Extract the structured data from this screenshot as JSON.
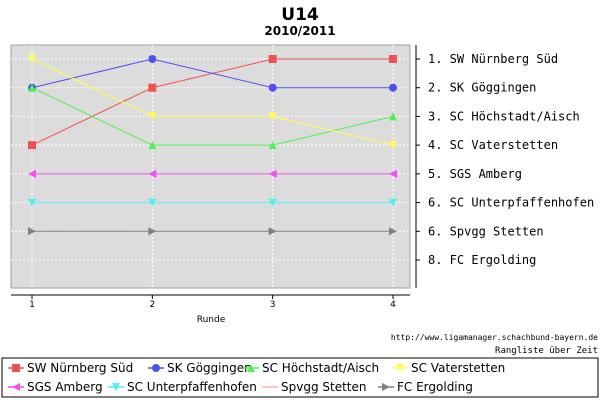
{
  "chart_data": {
    "type": "line",
    "title": "U14",
    "subtitle": "2010/2011",
    "xlabel": "Runde",
    "ylabel": "",
    "x": [
      1,
      2,
      3,
      4
    ],
    "x_tick_labels": [
      "1",
      "2",
      "3",
      "4"
    ],
    "ylim": [
      1,
      8
    ],
    "y_inverted": true,
    "grid": true,
    "legend_position": "bottom",
    "rank_labels": [
      "1. SW Nürnberg Süd",
      "2. SK Göggingen",
      "3. SC Höchstadt/Aisch",
      "4. SC Vaterstetten",
      "5. SGS Amberg",
      "6. SC Unterpfaffenhofen",
      "6. Spvgg Stetten",
      "8. FC Ergolding"
    ],
    "series": [
      {
        "name": "SW Nürnberg Süd",
        "values": [
          4,
          2,
          1,
          1
        ],
        "color": "#f05050",
        "marker": "square"
      },
      {
        "name": "SK Göggingen",
        "values": [
          2,
          1,
          2,
          2
        ],
        "color": "#5050f0",
        "marker": "circle"
      },
      {
        "name": "SC Höchstadt/Aisch",
        "values": [
          2,
          4,
          4,
          3
        ],
        "color": "#50f050",
        "marker": "triangle-up"
      },
      {
        "name": "SC Vaterstetten",
        "values": [
          1,
          3,
          3,
          4
        ],
        "color": "#ffff50",
        "marker": "triangle-down"
      },
      {
        "name": "SGS Amberg",
        "values": [
          5,
          5,
          5,
          5
        ],
        "color": "#f050f0",
        "marker": "triangle-left"
      },
      {
        "name": "SC Unterpfaffenhofen",
        "values": [
          6,
          6,
          6,
          6
        ],
        "color": "#50f0f0",
        "marker": "triangle-down"
      },
      {
        "name": "Spvgg Stetten",
        "values": [
          null,
          null,
          null,
          null
        ],
        "color": "#ffb0b0",
        "marker": "none"
      },
      {
        "name": "FC Ergolding",
        "values": [
          7,
          7,
          7,
          7
        ],
        "color": "#808080",
        "marker": "triangle-right"
      }
    ]
  },
  "source": {
    "url": "http://www.ligamanager.schachbund-bayern.de",
    "caption": "Rangliste über Zeit"
  }
}
